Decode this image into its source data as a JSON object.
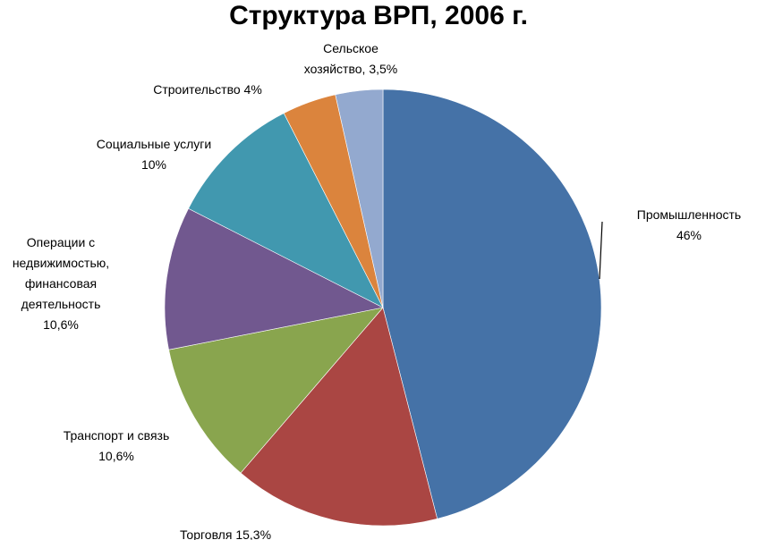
{
  "chart_data": {
    "type": "pie",
    "title": "Структура ВРП, 2006 г.",
    "slices": [
      {
        "name": "Промышленность",
        "value": 46,
        "value_label": "46%",
        "color": "#4572A7",
        "label_lines": [
          "Промышленность",
          "46%"
        ]
      },
      {
        "name": "Торговля",
        "value": 15.3,
        "value_label": "15,3%",
        "color": "#AA4643",
        "label_lines": [
          "Торговля 15,3%"
        ]
      },
      {
        "name": "Транспорт и связь",
        "value": 10.6,
        "value_label": "10,6%",
        "color": "#89A54E",
        "label_lines": [
          "Транспорт и связь",
          "10,6%"
        ]
      },
      {
        "name": "Операции с недвижимостью, финансовая деятельность",
        "value": 10.6,
        "value_label": "10,6%",
        "color": "#71588F",
        "label_lines": [
          "Операции с",
          "недвижимостью,",
          "финансовая",
          "деятельность",
          "10,6%"
        ]
      },
      {
        "name": "Социальные услуги",
        "value": 10,
        "value_label": "10%",
        "color": "#4198AF",
        "label_lines": [
          "Социальные услуги",
          "10%"
        ]
      },
      {
        "name": "Строительство",
        "value": 4,
        "value_label": "4%",
        "color": "#DB843D",
        "label_lines": [
          "Строительство  4%"
        ]
      },
      {
        "name": "Сельское хозяйство",
        "value": 3.5,
        "value_label": "3,5%",
        "color": "#93A9CF",
        "label_lines": [
          "Сельское",
          "хозяйство, 3,5%"
        ]
      }
    ],
    "start_angle_deg": 0,
    "direction": "clockwise",
    "legend": "none"
  }
}
